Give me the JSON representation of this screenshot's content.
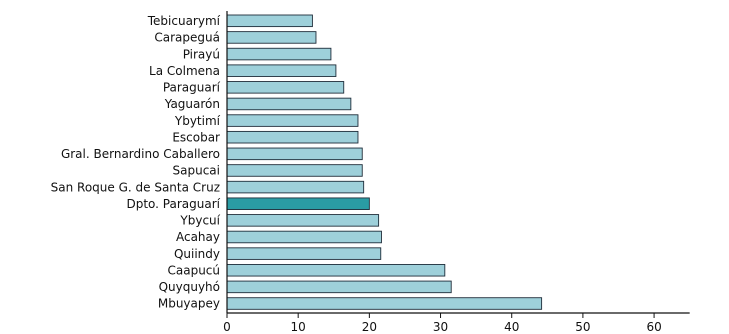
{
  "chart_data": {
    "type": "bar",
    "orientation": "horizontal",
    "title": "",
    "xlabel": "",
    "ylabel": "",
    "xlim": [
      0,
      65
    ],
    "xticks": [
      0,
      10,
      20,
      30,
      40,
      50,
      60
    ],
    "grid": false,
    "legend": "none",
    "colors": {
      "bar": "#9ed0da",
      "highlight": "#2a9ca4"
    },
    "categories": [
      "Tebicuarymí",
      "Carapeguá",
      "Pirayú",
      "La Colmena",
      "Paraguarí",
      "Yaguarón",
      "Ybytimí",
      "Escobar",
      "Gral. Bernardino Caballero",
      "Sapucai",
      "San Roque G. de Santa Cruz",
      "Dpto. Paraguarí",
      "Ybycuí",
      "Acahay",
      "Quiindy",
      "Caapucú",
      "Quyquyhó",
      "Mbuyapey"
    ],
    "values": [
      12.0,
      12.5,
      14.6,
      15.3,
      16.4,
      17.4,
      18.4,
      18.4,
      19.0,
      19.0,
      19.2,
      20.0,
      21.3,
      21.7,
      21.6,
      30.6,
      31.5,
      44.2
    ],
    "highlight": "Dpto. Paraguarí"
  }
}
